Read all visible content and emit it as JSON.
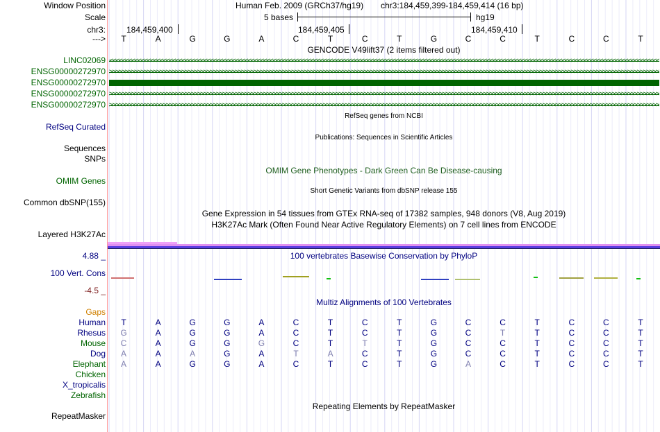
{
  "labels": {
    "window_position": "Window Position",
    "scale": "Scale",
    "chr": "chr3:",
    "strand": "--->",
    "gencode_items": [
      "LINC02069",
      "ENSG00000272970",
      "ENSG00000272970",
      "ENSG00000272970",
      "ENSG00000272970"
    ],
    "refseq": "RefSeq Curated",
    "sequences": "Sequences",
    "snps": "SNPs",
    "omim": "OMIM Genes",
    "dbsnp": "Common dbSNP(155)",
    "h3k27ac": "Layered H3K27Ac",
    "phylop_max": "4.88 _",
    "vert_cons": "100 Vert. Cons",
    "phylop_min": "-4.5 _",
    "gaps": "Gaps",
    "species": [
      "Human",
      "Rhesus",
      "Mouse",
      "Dog",
      "Elephant",
      "Chicken",
      "X_tropicalis",
      "Zebrafish"
    ],
    "repeatmasker": "RepeatMasker"
  },
  "header": {
    "assembly": "Human Feb. 2009 (GRCh37/hg19)",
    "position": "chr3:184,459,399-184,459,414 (16 bp)",
    "scale_text": "5 bases",
    "scale_db": "hg19",
    "coords": [
      "184,459,400",
      "184,459,405",
      "184,459,410"
    ]
  },
  "tracks": {
    "gencode": "GENCODE V49lift37 (2 items filtered out)",
    "refseq": "RefSeq genes from NCBI",
    "publications": "Publications: Sequences in Scientific Articles",
    "omim": "OMIM Gene Phenotypes - Dark Green Can Be Disease-causing",
    "dbsnp": "Short Genetic Variants from dbSNP release 155",
    "gtex": "Gene Expression in 54 tissues from GTEx RNA-seq of 17382 samples, 948 donors (V8, Aug 2019)",
    "h3k27ac": "H3K27Ac Mark (Often Found Near Active Regulatory Elements) on 7 cell lines from ENCODE",
    "phylop": "100 vertebrates Basewise Conservation by PhyloP",
    "multiz": "Multiz Alignments of 100 Vertebrates",
    "rmsk": "Repeating Elements by RepeatMasker"
  },
  "sequence": [
    "T",
    "A",
    "G",
    "G",
    "A",
    "C",
    "T",
    "C",
    "T",
    "G",
    "C",
    "C",
    "T",
    "C",
    "C",
    "T"
  ],
  "alignments": {
    "Human": [
      "T",
      "A",
      "G",
      "G",
      "A",
      "C",
      "T",
      "C",
      "T",
      "G",
      "C",
      "C",
      "T",
      "C",
      "C",
      "T"
    ],
    "Rhesus": [
      "G",
      "A",
      "G",
      "G",
      "A",
      "C",
      "T",
      "C",
      "T",
      "G",
      "C",
      "T",
      "T",
      "C",
      "C",
      "T"
    ],
    "Mouse": [
      "C",
      "A",
      "G",
      "G",
      "G",
      "C",
      "T",
      "T",
      "T",
      "G",
      "C",
      "C",
      "T",
      "C",
      "C",
      "T"
    ],
    "Dog": [
      "A",
      "A",
      "A",
      "G",
      "A",
      "T",
      "A",
      "C",
      "T",
      "G",
      "C",
      "C",
      "T",
      "C",
      "C",
      "T"
    ],
    "Elephant": [
      "A",
      "A",
      "G",
      "G",
      "A",
      "C",
      "T",
      "C",
      "T",
      "G",
      "A",
      "C",
      "T",
      "C",
      "C",
      "T"
    ]
  },
  "colors": {
    "label_blue": "#000080",
    "gencode_green": "#006400",
    "omim_green": "#1f5f1f",
    "cons_red": "#7f2020",
    "gaps_orange": "#d08000",
    "mismatch": "#8080b0",
    "h3k_pink": "#e08ff0",
    "h3k_purple": "#6040e0"
  }
}
